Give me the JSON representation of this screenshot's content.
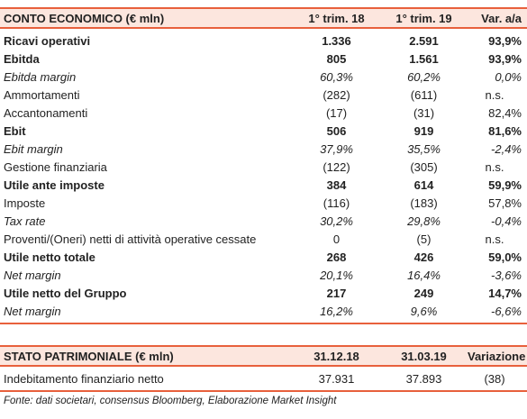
{
  "income_statement": {
    "header": [
      "CONTO ECONOMICO (€ mln)",
      "1° trim. 18",
      "1° trim. 19",
      "Var. a/a"
    ],
    "rows": [
      [
        "Ricavi operativi",
        "1.336",
        "2.591",
        "93,9%"
      ],
      [
        "Ebitda",
        "805",
        "1.561",
        "93,9%"
      ],
      [
        "Ebitda margin",
        "60,3%",
        "60,2%",
        "0,0%"
      ],
      [
        "Ammortamenti",
        "(282)",
        "(611)",
        "n.s."
      ],
      [
        "Accantonamenti",
        "(17)",
        "(31)",
        "82,4%"
      ],
      [
        "Ebit",
        "506",
        "919",
        "81,6%"
      ],
      [
        "Ebit margin",
        "37,9%",
        "35,5%",
        "-2,4%"
      ],
      [
        "Gestione finanziaria",
        "(122)",
        "(305)",
        "n.s."
      ],
      [
        "Utile ante imposte",
        "384",
        "614",
        "59,9%"
      ],
      [
        "Imposte",
        "(116)",
        "(183)",
        "57,8%"
      ],
      [
        "Tax rate",
        "30,2%",
        "29,8%",
        "-0,4%"
      ],
      [
        "Proventi/(Oneri) netti di attività operative cessate",
        "0",
        "(5)",
        "n.s."
      ],
      [
        "Utile netto totale",
        "268",
        "426",
        "59,0%"
      ],
      [
        "Net margin",
        "20,1%",
        "16,4%",
        "-3,6%"
      ],
      [
        "Utile netto del Gruppo",
        "217",
        "249",
        "14,7%"
      ],
      [
        "Net margin",
        "16,2%",
        "9,6%",
        "-6,6%"
      ]
    ]
  },
  "balance_sheet": {
    "header": [
      "STATO PATRIMONIALE (€ mln)",
      "31.12.18",
      "31.03.19",
      "Variazione"
    ],
    "rows": [
      [
        "Indebitamento finanziario netto",
        "37.931",
        "37.893",
        "(38)"
      ]
    ]
  },
  "footer": "Fonte: dati societari, consensus Bloomberg, Elaborazione Market Insight"
}
